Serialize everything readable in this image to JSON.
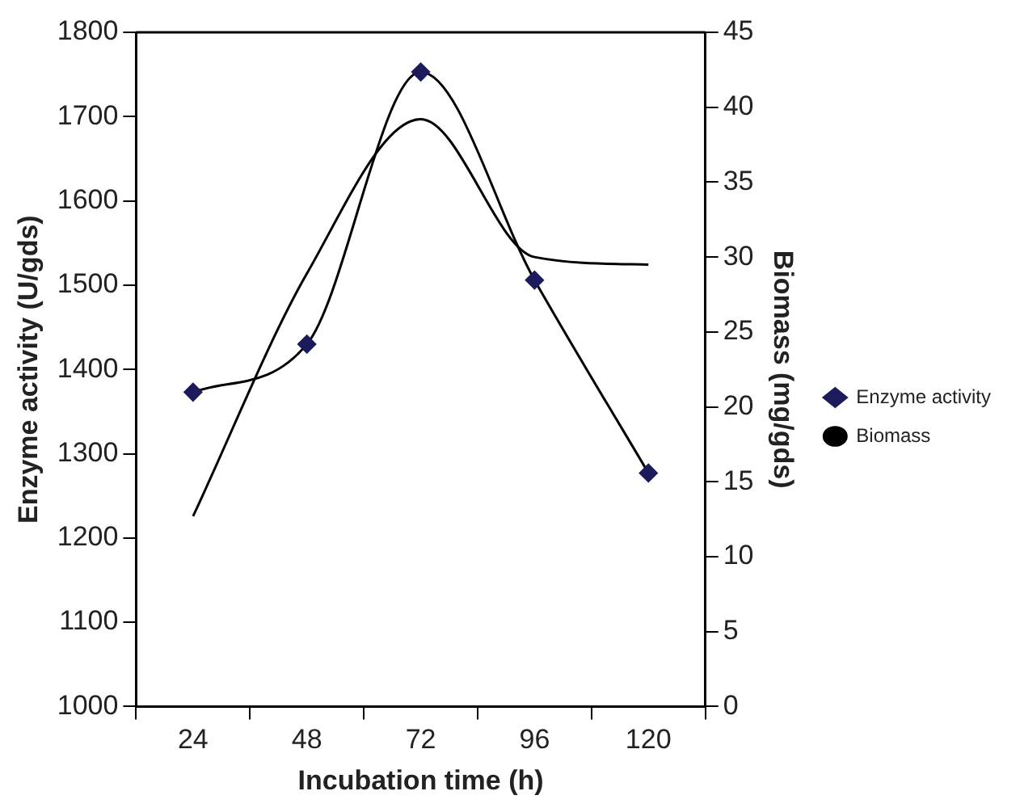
{
  "chart_data": {
    "type": "line",
    "xlabel": "Incubation time (h)",
    "ylabel": "Enzyme activity (U/gds)",
    "y2label": "Biomass (mg/gds)",
    "categories": [
      "24",
      "48",
      "72",
      "96",
      "120"
    ],
    "series": [
      {
        "name": "Enzyme activity",
        "color": "#1c1c5c",
        "marker": "diamond",
        "values": [
          1373,
          1430,
          1753,
          1506,
          1277
        ]
      },
      {
        "name": "Biomass",
        "color": "#000000",
        "marker": "none",
        "axis": "y2",
        "values": [
          12.7,
          28.9,
          39.2,
          30.0,
          29.5
        ]
      }
    ],
    "ylim": [
      1000,
      1800
    ],
    "yticks": [
      1000,
      1100,
      1200,
      1300,
      1400,
      1500,
      1600,
      1700,
      1800
    ],
    "y2lim": [
      0,
      45
    ],
    "y2ticks": [
      0,
      5,
      10,
      15,
      20,
      25,
      30,
      35,
      40,
      45
    ],
    "grid": false,
    "legend": "right",
    "line_style": "solid"
  }
}
